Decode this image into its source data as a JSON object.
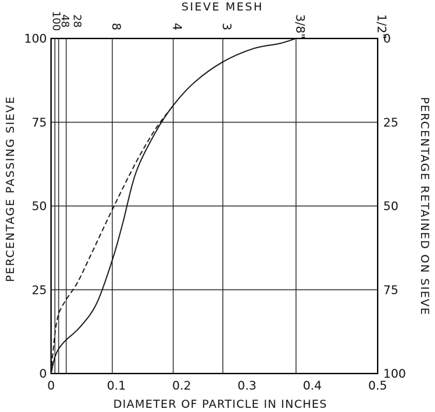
{
  "chart_data": {
    "type": "line",
    "title": "",
    "top_axis_label": "SIEVE MESH",
    "xlabel": "DIAMETER OF PARTICLE IN INCHES",
    "ylabel": "PERCENTAGE PASSING SIEVE",
    "ylabel_right": "PERCENTAGE RETAINED ON SIEVE",
    "xlim": [
      0,
      0.5
    ],
    "ylim": [
      0,
      100
    ],
    "x_ticks": [
      "0",
      "0.1",
      "0.2",
      "0.3",
      "0.4",
      "0.5"
    ],
    "y_ticks": [
      "0",
      "25",
      "50",
      "75",
      "100"
    ],
    "y_ticks_right": [
      "100",
      "75",
      "50",
      "25",
      "0"
    ],
    "sieves": [
      {
        "label": "100",
        "x": 0.0059
      },
      {
        "label": "48",
        "x": 0.0116
      },
      {
        "label": "28",
        "x": 0.0232
      },
      {
        "label": "8",
        "x": 0.0937
      },
      {
        "label": "4",
        "x": 0.187
      },
      {
        "label": "3",
        "x": 0.263
      },
      {
        "label": "3/8\"",
        "x": 0.375
      },
      {
        "label": "1/2\"",
        "x": 0.5
      }
    ],
    "grid": true,
    "series": [
      {
        "style": "solid",
        "x": [
          0,
          0.006,
          0.012,
          0.023,
          0.045,
          0.07,
          0.094,
          0.11,
          0.13,
          0.16,
          0.187,
          0.22,
          0.263,
          0.31,
          0.35,
          0.375
        ],
        "y": [
          0,
          5,
          7.5,
          10,
          14,
          21,
          34,
          45,
          60,
          72,
          80,
          87,
          93,
          97,
          98.5,
          100
        ]
      },
      {
        "style": "dashed",
        "x": [
          0,
          0.006,
          0.012,
          0.023,
          0.04,
          0.06,
          0.094,
          0.13,
          0.16,
          0.187
        ],
        "y": [
          0,
          12,
          18,
          22,
          27,
          35,
          49,
          63,
          73,
          80
        ]
      }
    ]
  }
}
